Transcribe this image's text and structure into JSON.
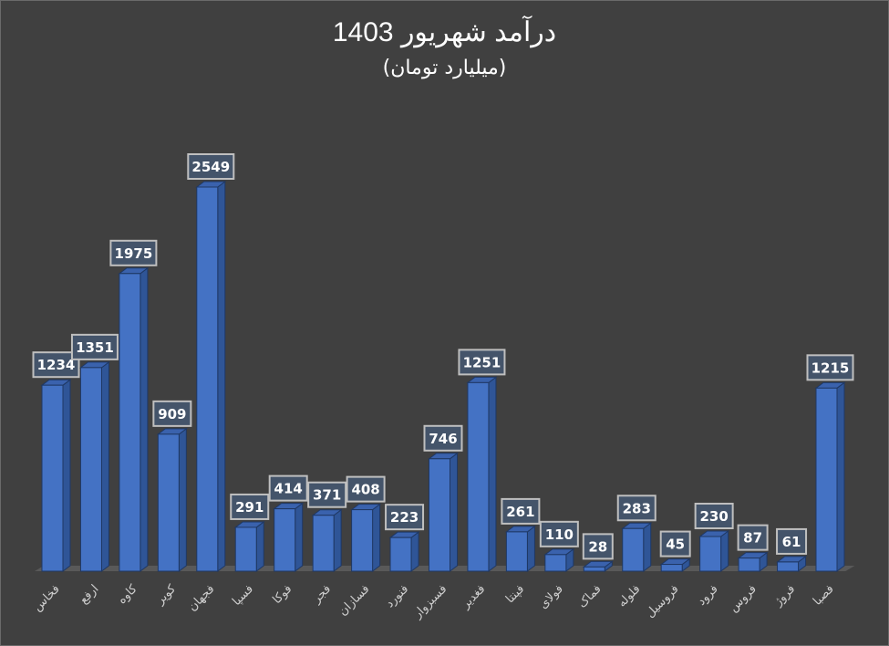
{
  "header": {
    "title": "درآمد شهریور 1403",
    "subtitle": "(میلیارد تومان)"
  },
  "colors": {
    "background": "#404040",
    "bar_front": "#4472C4",
    "bar_side": "#2F5597",
    "bar_top": "#3A62AD",
    "bar_edge": "#1F3864",
    "floor": "#595959",
    "label_box": "#44546A",
    "label_border": "#BFBFBF",
    "label_text": "#FFFFFF",
    "axis_text": "#D0D0D0"
  },
  "chart_data": {
    "type": "bar",
    "title": "درآمد شهریور 1403",
    "subtitle": "(میلیارد تومان)",
    "xlabel": "",
    "ylabel": "",
    "style": "3d-column",
    "grid": false,
    "legend": "none",
    "data_labels": true,
    "categories": [
      "فخاس",
      "ارفع",
      "کاوه",
      "کویر",
      "فجهان",
      "فسپا",
      "فوکا",
      "فجر",
      "فسازان",
      "فنورد",
      "فسبزوار",
      "فغدیر",
      "فپنتا",
      "فولای",
      "فماک",
      "فلوله",
      "فروسیل",
      "فرود",
      "فروس",
      "فروژ",
      "فصبا"
    ],
    "values": [
      1234,
      1351,
      1975,
      909,
      2549,
      291,
      414,
      371,
      408,
      223,
      746,
      1251,
      261,
      110,
      28,
      283,
      45,
      230,
      87,
      61,
      1215
    ],
    "ylim": [
      0,
      2600
    ]
  }
}
